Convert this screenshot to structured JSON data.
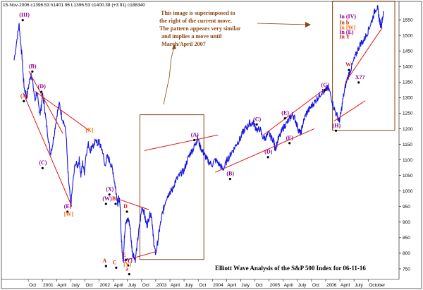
{
  "header_text": "15-Nov-2006  c1396.53 h1401.96 L1396.53 c1400.38 (+3.91) c188340",
  "footer_text": "Elliott Wave Analysis of the S&P 500 Index for 06-11-16",
  "annotation": [
    "This image is superimposed to",
    "the right of the current move.",
    "The pattern appears very similar",
    "and implies a move until",
    "March/April 2007"
  ],
  "colors": {
    "price": "#1414e6",
    "trendline": "#e01818",
    "box": "#8b4513",
    "wave_label": "#8b008b",
    "wave_label_alt": "#cc3300",
    "bracket_label": "#ff6600"
  },
  "chart_data": {
    "type": "line",
    "title": "",
    "xlabel": "",
    "ylabel": "",
    "ylim": [
      725,
      1600
    ],
    "y_ticks": [
      750,
      800,
      850,
      900,
      950,
      1000,
      1050,
      1100,
      1150,
      1200,
      1250,
      1300,
      1350,
      1400,
      1450,
      1500,
      1550
    ],
    "x_ticks": [
      {
        "label": "Oct",
        "t": 0.25
      },
      {
        "label": "2001",
        "t": 0.5
      },
      {
        "label": "April",
        "t": 0.75
      },
      {
        "label": "July",
        "t": 1.0
      },
      {
        "label": "Oct",
        "t": 1.25
      },
      {
        "label": "2002",
        "t": 1.5
      },
      {
        "label": "April",
        "t": 1.75
      },
      {
        "label": "July",
        "t": 2.0
      },
      {
        "label": "Oct",
        "t": 2.25
      },
      {
        "label": "2003",
        "t": 2.5
      },
      {
        "label": "April",
        "t": 2.75
      },
      {
        "label": "July",
        "t": 3.0
      },
      {
        "label": "Oct",
        "t": 3.25
      },
      {
        "label": "2004",
        "t": 3.5
      },
      {
        "label": "April",
        "t": 3.75
      },
      {
        "label": "July",
        "t": 4.0
      },
      {
        "label": "Oct",
        "t": 4.25
      },
      {
        "label": "2005",
        "t": 4.5
      },
      {
        "label": "April",
        "t": 4.75
      },
      {
        "label": "July",
        "t": 5.0
      },
      {
        "label": "Oct",
        "t": 5.25
      },
      {
        "label": "2006",
        "t": 5.5
      },
      {
        "label": "April",
        "t": 5.75
      },
      {
        "label": "July",
        "t": 6.0
      },
      {
        "label": "October",
        "t": 6.25
      }
    ],
    "series": [
      {
        "points": [
          [
            0,
            1420
          ],
          [
            0.06,
            1500
          ],
          [
            0.09,
            1535
          ],
          [
            0.12,
            1470
          ],
          [
            0.14,
            1430
          ],
          [
            0.16,
            1370
          ],
          [
            0.18,
            1330
          ],
          [
            0.22,
            1305
          ],
          [
            0.26,
            1340
          ],
          [
            0.3,
            1380
          ],
          [
            0.33,
            1345
          ],
          [
            0.37,
            1290
          ],
          [
            0.4,
            1320
          ],
          [
            0.43,
            1275
          ],
          [
            0.46,
            1250
          ],
          [
            0.48,
            1270
          ],
          [
            0.5,
            1310
          ],
          [
            0.53,
            1280
          ],
          [
            0.56,
            1230
          ],
          [
            0.6,
            1175
          ],
          [
            0.64,
            1120
          ],
          [
            0.68,
            1150
          ],
          [
            0.72,
            1200
          ],
          [
            0.76,
            1250
          ],
          [
            0.8,
            1280
          ],
          [
            0.84,
            1240
          ],
          [
            0.88,
            1220
          ],
          [
            0.92,
            1180
          ],
          [
            0.95,
            1060
          ],
          [
            0.98,
            1000
          ],
          [
            1.0,
            950
          ],
          [
            1.04,
            1030
          ],
          [
            1.08,
            1090
          ],
          [
            1.12,
            1080
          ],
          [
            1.15,
            1100
          ],
          [
            1.18,
            1050
          ],
          [
            1.21,
            1090
          ],
          [
            1.24,
            1060
          ],
          [
            1.27,
            1120
          ],
          [
            1.31,
            1150
          ],
          [
            1.35,
            1130
          ],
          [
            1.38,
            1150
          ],
          [
            1.41,
            1140
          ],
          [
            1.44,
            1170
          ],
          [
            1.47,
            1150
          ],
          [
            1.5,
            1160
          ],
          [
            1.53,
            1140
          ],
          [
            1.56,
            1130
          ],
          [
            1.6,
            1080
          ],
          [
            1.64,
            1110
          ],
          [
            1.68,
            1100
          ],
          [
            1.72,
            1080
          ],
          [
            1.75,
            1060
          ],
          [
            1.78,
            1020
          ],
          [
            1.8,
            1000
          ],
          [
            1.83,
            960
          ],
          [
            1.85,
            980
          ],
          [
            1.87,
            950
          ],
          [
            1.89,
            860
          ],
          [
            1.91,
            800
          ],
          [
            1.93,
            780
          ],
          [
            1.95,
            860
          ],
          [
            1.97,
            905
          ],
          [
            1.99,
            900
          ],
          [
            2.02,
            910
          ],
          [
            2.05,
            880
          ],
          [
            2.07,
            835
          ],
          [
            2.09,
            800
          ],
          [
            2.11,
            795
          ],
          [
            2.14,
            780
          ],
          [
            2.17,
            825
          ],
          [
            2.2,
            870
          ],
          [
            2.23,
            910
          ],
          [
            2.26,
            950
          ],
          [
            2.29,
            935
          ],
          [
            2.32,
            905
          ],
          [
            2.35,
            890
          ],
          [
            2.38,
            915
          ],
          [
            2.41,
            930
          ],
          [
            2.43,
            915
          ],
          [
            2.45,
            865
          ],
          [
            2.47,
            830
          ],
          [
            2.49,
            805
          ],
          [
            2.5,
            800
          ],
          [
            2.53,
            830
          ],
          [
            2.56,
            870
          ],
          [
            2.59,
            900
          ],
          [
            2.62,
            930
          ],
          [
            2.65,
            950
          ],
          [
            2.68,
            975
          ],
          [
            2.71,
            985
          ],
          [
            2.74,
            995
          ],
          [
            2.77,
            1000
          ],
          [
            2.8,
            1005
          ],
          [
            2.84,
            1030
          ],
          [
            2.88,
            1040
          ],
          [
            2.92,
            1050
          ],
          [
            2.96,
            1060
          ],
          [
            3.0,
            1065
          ],
          [
            3.04,
            1090
          ],
          [
            3.08,
            1110
          ],
          [
            3.12,
            1125
          ],
          [
            3.16,
            1135
          ],
          [
            3.2,
            1150
          ],
          [
            3.22,
            1160
          ],
          [
            3.24,
            1170
          ],
          [
            3.28,
            1145
          ],
          [
            3.32,
            1130
          ],
          [
            3.35,
            1120
          ],
          [
            3.38,
            1110
          ],
          [
            3.41,
            1100
          ],
          [
            3.45,
            1090
          ],
          [
            3.5,
            1085
          ],
          [
            3.55,
            1100
          ],
          [
            3.6,
            1090
          ],
          [
            3.65,
            1080
          ],
          [
            3.68,
            1070
          ],
          [
            3.72,
            1080
          ],
          [
            3.76,
            1100
          ],
          [
            3.8,
            1110
          ],
          [
            3.84,
            1125
          ],
          [
            3.88,
            1135
          ],
          [
            3.92,
            1150
          ],
          [
            3.96,
            1160
          ],
          [
            4.0,
            1170
          ],
          [
            4.04,
            1190
          ],
          [
            4.08,
            1200
          ],
          [
            4.12,
            1205
          ],
          [
            4.15,
            1220
          ],
          [
            4.18,
            1215
          ],
          [
            4.22,
            1220
          ],
          [
            4.26,
            1205
          ],
          [
            4.3,
            1195
          ],
          [
            4.34,
            1200
          ],
          [
            4.38,
            1175
          ],
          [
            4.42,
            1170
          ],
          [
            4.46,
            1175
          ],
          [
            4.5,
            1185
          ],
          [
            4.54,
            1170
          ],
          [
            4.58,
            1165
          ],
          [
            4.6,
            1140
          ],
          [
            4.62,
            1140
          ],
          [
            4.66,
            1165
          ],
          [
            4.7,
            1180
          ],
          [
            4.74,
            1200
          ],
          [
            4.78,
            1210
          ],
          [
            4.82,
            1220
          ],
          [
            4.86,
            1230
          ],
          [
            4.89,
            1240
          ],
          [
            4.92,
            1245
          ],
          [
            4.95,
            1235
          ],
          [
            4.98,
            1220
          ],
          [
            5.01,
            1200
          ],
          [
            5.04,
            1190
          ],
          [
            5.06,
            1185
          ],
          [
            5.09,
            1210
          ],
          [
            5.12,
            1230
          ],
          [
            5.16,
            1250
          ],
          [
            5.2,
            1260
          ],
          [
            5.24,
            1270
          ],
          [
            5.28,
            1280
          ],
          [
            5.32,
            1290
          ],
          [
            5.36,
            1300
          ],
          [
            5.4,
            1310
          ],
          [
            5.44,
            1320
          ],
          [
            5.48,
            1315
          ],
          [
            5.52,
            1330
          ],
          [
            5.56,
            1325
          ],
          [
            5.6,
            1300
          ],
          [
            5.64,
            1270
          ],
          [
            5.68,
            1250
          ],
          [
            5.72,
            1235
          ],
          [
            5.74,
            1225
          ],
          [
            5.77,
            1250
          ],
          [
            5.8,
            1290
          ],
          [
            5.84,
            1330
          ],
          [
            5.88,
            1360
          ],
          [
            5.92,
            1380
          ],
          [
            5.96,
            1400
          ],
          [
            6.0,
            1420
          ],
          [
            6.04,
            1440
          ],
          [
            6.08,
            1460
          ],
          [
            6.12,
            1475
          ],
          [
            6.16,
            1480
          ],
          [
            6.2,
            1495
          ],
          [
            6.24,
            1510
          ],
          [
            6.28,
            1530
          ],
          [
            6.32,
            1550
          ],
          [
            6.36,
            1575
          ],
          [
            6.4,
            1590
          ],
          [
            6.42,
            1585
          ],
          [
            6.44,
            1560
          ],
          [
            6.46,
            1540
          ],
          [
            6.48,
            1530
          ],
          [
            6.5,
            1555
          ],
          [
            6.52,
            1570
          ]
        ]
      }
    ],
    "trendlines": [
      {
        "from": [
          0.16,
          1315
        ],
        "to": [
          1.02,
          950
        ]
      },
      {
        "from": [
          0.26,
          1385
        ],
        "to": [
          0.86,
          1185
        ]
      },
      {
        "from": [
          0.37,
          1320
        ],
        "to": [
          1.32,
          1195
        ]
      },
      {
        "from": [
          1.82,
          975
        ],
        "to": [
          2.38,
          940
        ]
      },
      {
        "from": [
          1.91,
          775
        ],
        "to": [
          2.5,
          805
        ]
      },
      {
        "from": [
          2.3,
          1130
        ],
        "to": [
          3.6,
          1180
        ]
      },
      {
        "from": [
          3.55,
          1060
        ],
        "to": [
          5.3,
          1200
        ]
      },
      {
        "from": [
          4.4,
          1180
        ],
        "to": [
          5.5,
          1330
        ]
      },
      {
        "from": [
          5.65,
          1225
        ],
        "to": [
          6.2,
          1290
        ]
      },
      {
        "from": [
          5.85,
          1350
        ],
        "to": [
          6.5,
          1525
        ]
      }
    ],
    "wave_labels": [
      {
        "text": "(III)",
        "x": 0.09,
        "y": 1560,
        "style": "purple"
      },
      {
        "text": "(A)",
        "x": 0.11,
        "y": 1300,
        "style": "orange"
      },
      {
        "text": "(B)",
        "x": 0.26,
        "y": 1395,
        "style": "purple"
      },
      {
        "text": "(D)",
        "x": 0.42,
        "y": 1330,
        "style": "purple"
      },
      {
        "text": "(C)",
        "x": 0.44,
        "y": 1085,
        "style": "purple"
      },
      {
        "text": "(E)",
        "x": 0.88,
        "y": 945,
        "style": "purple"
      },
      {
        "text": "[W]",
        "x": 0.88,
        "y": 920,
        "style": "bracket"
      },
      {
        "text": "[X]",
        "x": 1.26,
        "y": 1190,
        "style": "bracket"
      },
      {
        "text": "(X)",
        "x": 1.62,
        "y": 1000,
        "style": "purple"
      },
      {
        "text": "(W)",
        "x": 1.56,
        "y": 970,
        "style": "purple"
      },
      {
        "text": "B",
        "x": 1.73,
        "y": 970,
        "style": "red"
      },
      {
        "text": "D",
        "x": 1.93,
        "y": 945,
        "style": "red"
      },
      {
        "text": "A",
        "x": 1.56,
        "y": 770,
        "style": "red"
      },
      {
        "text": "C",
        "x": 1.74,
        "y": 765,
        "style": "red"
      },
      {
        "text": "E",
        "x": 1.91,
        "y": 790,
        "style": "red"
      },
      {
        "text": "(Y)",
        "x": 1.95,
        "y": 772,
        "style": "purple"
      },
      {
        "text": "[Y]",
        "x": 1.93,
        "y": 758,
        "style": "bracket"
      },
      {
        "text": "a",
        "x": 1.97,
        "y": 744,
        "style": "red"
      },
      {
        "text": "(A)",
        "x": 3.12,
        "y": 1175,
        "style": "purple"
      },
      {
        "text": "(B)",
        "x": 3.75,
        "y": 1050,
        "style": "purple"
      },
      {
        "text": "(C)",
        "x": 4.22,
        "y": 1225,
        "style": "purple"
      },
      {
        "text": "(D)",
        "x": 4.42,
        "y": 1120,
        "style": "purple"
      },
      {
        "text": "(E)",
        "x": 4.72,
        "y": 1245,
        "style": "purple"
      },
      {
        "text": "(F)",
        "x": 4.8,
        "y": 1165,
        "style": "purple"
      },
      {
        "text": "(G)",
        "x": 5.42,
        "y": 1335,
        "style": "purple"
      },
      {
        "text": "(H)",
        "x": 5.62,
        "y": 1205,
        "style": "purple"
      },
      {
        "text": "W",
        "x": 5.85,
        "y": 1400,
        "style": "red"
      },
      {
        "text": "X??",
        "x": 6.02,
        "y": 1360,
        "style": "purple"
      },
      {
        "text": "In (IV)",
        "x": 5.74,
        "y": 1555,
        "style": "purple"
      },
      {
        "text": "In b",
        "x": 5.74,
        "y": 1535,
        "style": "orange"
      },
      {
        "text": "In [W]",
        "x": 5.74,
        "y": 1520,
        "style": "bracket"
      },
      {
        "text": "In (E)",
        "x": 5.74,
        "y": 1505,
        "style": "purple"
      },
      {
        "text": "In Y",
        "x": 5.74,
        "y": 1490,
        "style": "red"
      }
    ],
    "boxes": [
      {
        "from": [
          2.22,
          1245
        ],
        "to": [
          3.35,
          780
        ]
      },
      {
        "from": [
          5.62,
          1610
        ],
        "to": [
          6.72,
          1195
        ]
      }
    ]
  }
}
